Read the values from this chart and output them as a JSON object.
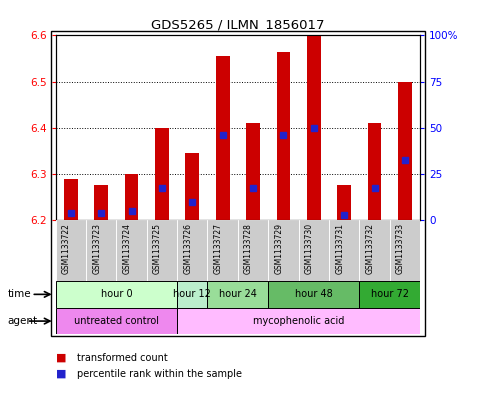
{
  "title": "GDS5265 / ILMN_1856017",
  "samples": [
    "GSM1133722",
    "GSM1133723",
    "GSM1133724",
    "GSM1133725",
    "GSM1133726",
    "GSM1133727",
    "GSM1133728",
    "GSM1133729",
    "GSM1133730",
    "GSM1133731",
    "GSM1133732",
    "GSM1133733"
  ],
  "bar_base": 6.2,
  "bar_tops": [
    6.29,
    6.275,
    6.3,
    6.4,
    6.345,
    6.555,
    6.41,
    6.565,
    6.6,
    6.275,
    6.41,
    6.5
  ],
  "blue_marker_values": [
    6.215,
    6.215,
    6.22,
    6.27,
    6.24,
    6.385,
    6.27,
    6.385,
    6.4,
    6.21,
    6.27,
    6.33
  ],
  "ylim": [
    6.2,
    6.6
  ],
  "left_ticks": [
    6.2,
    6.3,
    6.4,
    6.5,
    6.6
  ],
  "right_ticks_pos": [
    6.2,
    6.3,
    6.4,
    6.5,
    6.6
  ],
  "right_ticks_labels": [
    "0",
    "25",
    "50",
    "75",
    "100%"
  ],
  "bar_color": "#cc0000",
  "blue_color": "#2222cc",
  "time_groups": [
    {
      "label": "hour 0",
      "start": 0,
      "end": 4,
      "color": "#ccffcc"
    },
    {
      "label": "hour 12",
      "start": 4,
      "end": 5,
      "color": "#bbeecc"
    },
    {
      "label": "hour 24",
      "start": 5,
      "end": 7,
      "color": "#99dd99"
    },
    {
      "label": "hour 48",
      "start": 7,
      "end": 10,
      "color": "#66bb66"
    },
    {
      "label": "hour 72",
      "start": 10,
      "end": 12,
      "color": "#33aa33"
    }
  ],
  "agent_groups": [
    {
      "label": "untreated control",
      "start": 0,
      "end": 4,
      "color": "#ee88ee"
    },
    {
      "label": "mycophenolic acid",
      "start": 4,
      "end": 12,
      "color": "#ffbbff"
    }
  ],
  "legend_red": "transformed count",
  "legend_blue": "percentile rank within the sample",
  "sample_bg": "#cccccc",
  "bar_width": 0.45
}
